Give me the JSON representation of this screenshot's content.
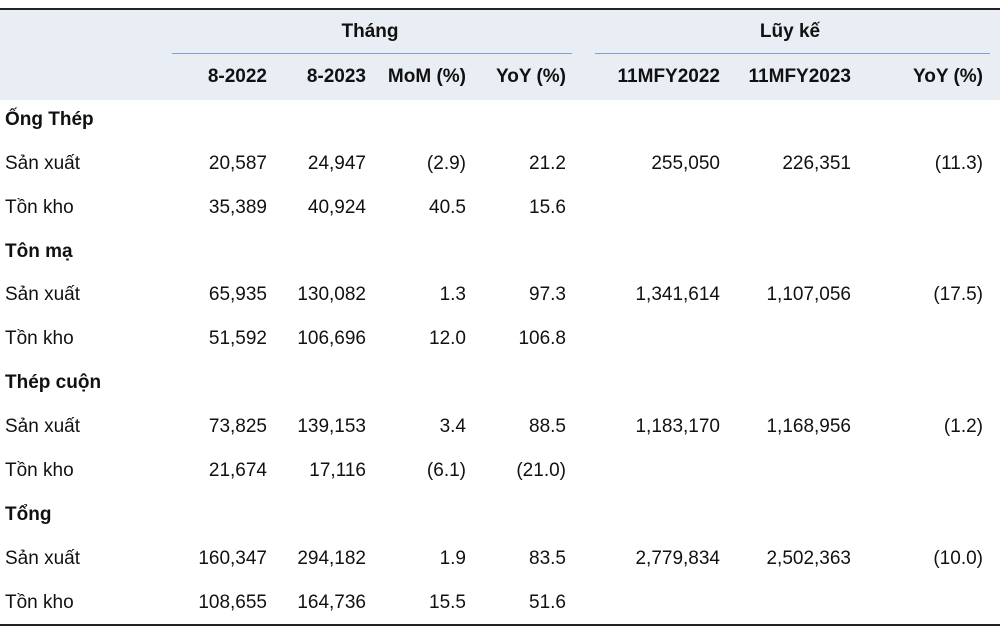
{
  "header": {
    "groups": [
      "Tháng",
      "Lũy kế"
    ],
    "columns": [
      "8-2022",
      "8-2023",
      "MoM (%)",
      "YoY (%)",
      "11MFY2022",
      "11MFY2023",
      "YoY (%)"
    ]
  },
  "sections": [
    {
      "title": "Ống Thép",
      "rows": [
        {
          "label": "Sản xuất",
          "cells": [
            "20,587",
            "24,947",
            "(2.9)",
            "21.2",
            "255,050",
            "226,351",
            "(11.3)"
          ]
        },
        {
          "label": "Tồn kho",
          "cells": [
            "35,389",
            "40,924",
            "40.5",
            "15.6"
          ]
        }
      ]
    },
    {
      "title": "Tôn mạ",
      "rows": [
        {
          "label": "Sản xuất",
          "cells": [
            "65,935",
            "130,082",
            "1.3",
            "97.3",
            "1,341,614",
            "1,107,056",
            "(17.5)"
          ]
        },
        {
          "label": "Tồn kho",
          "cells": [
            "51,592",
            "106,696",
            "12.0",
            "106.8"
          ]
        }
      ]
    },
    {
      "title": "Thép cuộn",
      "rows": [
        {
          "label": "Sản xuất",
          "cells": [
            "73,825",
            "139,153",
            "3.4",
            "88.5",
            "1,183,170",
            "1,168,956",
            "(1.2)"
          ]
        },
        {
          "label": "Tồn kho",
          "cells": [
            "21,674",
            "17,116",
            "(6.1)",
            "(21.0)"
          ]
        }
      ]
    },
    {
      "title": "Tổng",
      "rows": [
        {
          "label": "Sản xuất",
          "cells": [
            "160,347",
            "294,182",
            "1.9",
            "83.5",
            "2,779,834",
            "2,502,363",
            "(10.0)"
          ]
        },
        {
          "label": "Tồn kho",
          "cells": [
            "108,655",
            "164,736",
            "15.5",
            "51.6"
          ]
        }
      ]
    }
  ]
}
